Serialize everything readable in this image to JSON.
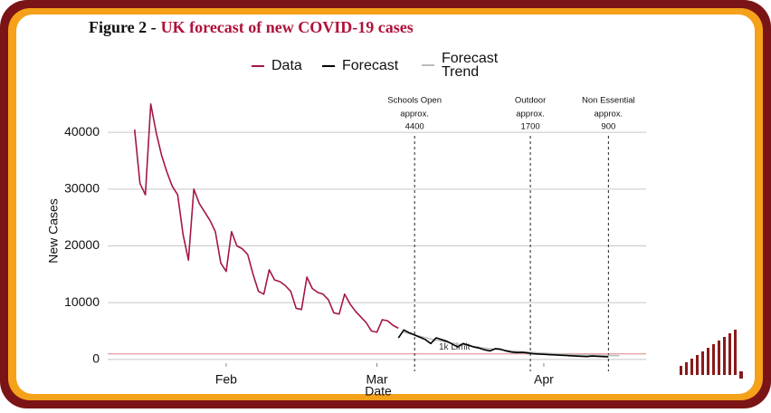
{
  "chart_data": {
    "type": "line",
    "figure_label": "Figure 2 -",
    "title": "UK forecast of new COVID-19 cases",
    "x_label": "Date",
    "y_label": "New Cases",
    "xlim": [
      10,
      110
    ],
    "xticks": [
      {
        "value": 32,
        "label": "Feb"
      },
      {
        "value": 60,
        "label": "Mar"
      },
      {
        "value": 91,
        "label": "Apr"
      }
    ],
    "ylim": [
      -500,
      48000
    ],
    "yticks": [
      0,
      10000,
      20000,
      30000,
      40000
    ],
    "grid": true,
    "series": [
      {
        "name": "Data",
        "color": "#a3164a",
        "x": [
          15,
          16,
          17,
          18,
          19,
          20,
          21,
          22,
          23,
          24,
          25,
          26,
          27,
          28,
          29,
          30,
          31,
          32,
          33,
          34,
          35,
          36,
          37,
          38,
          39,
          40,
          41,
          42,
          43,
          44,
          45,
          46,
          47,
          48,
          49,
          50,
          51,
          52,
          53,
          54,
          55,
          56,
          57,
          58,
          59,
          60,
          61,
          62,
          63,
          64
        ],
        "values": [
          40500,
          31000,
          29000,
          45000,
          40000,
          36000,
          33000,
          30500,
          29000,
          22000,
          17500,
          30000,
          27500,
          26000,
          24500,
          22500,
          17000,
          15500,
          22500,
          20000,
          19500,
          18500,
          15000,
          12000,
          11500,
          15800,
          14000,
          13700,
          13000,
          12000,
          9000,
          8800,
          14500,
          12500,
          11800,
          11500,
          10500,
          8200,
          8000,
          11500,
          9800,
          8500,
          7500,
          6500,
          5000,
          4800,
          7000,
          6800,
          6000,
          5500
        ]
      },
      {
        "name": "Forecast",
        "color": "#000000",
        "x": [
          64,
          65,
          66,
          67,
          68,
          69,
          70,
          71,
          72,
          73,
          74,
          75,
          76,
          77,
          78,
          79,
          80,
          81,
          82,
          83,
          84,
          85,
          86,
          87,
          88,
          89,
          90,
          91,
          92,
          93,
          94,
          95,
          96,
          97,
          98,
          99,
          100,
          101,
          102,
          103
        ],
        "values": [
          3800,
          5200,
          4700,
          4300,
          3900,
          3500,
          2800,
          3800,
          3500,
          3200,
          2700,
          2200,
          2800,
          2500,
          2200,
          2000,
          1700,
          1500,
          1900,
          1800,
          1500,
          1300,
          1200,
          1250,
          1150,
          1000,
          950,
          900,
          850,
          800,
          750,
          700,
          650,
          600,
          550,
          500,
          600,
          550,
          500,
          450
        ]
      },
      {
        "name": "Forecast Trend",
        "color": "#bbbbbb",
        "x": [
          65,
          70,
          75,
          80,
          85,
          90,
          95,
          100,
          105
        ],
        "values": [
          4800,
          3600,
          2700,
          2000,
          1500,
          1150,
          900,
          750,
          650
        ]
      }
    ],
    "limit": {
      "value": 1000,
      "label": "1k Limit",
      "color": "#e8a8a8"
    },
    "events": [
      {
        "x": 67,
        "label": "Schools Open",
        "note": "approx.",
        "value": 4400
      },
      {
        "x": 88.5,
        "label": "Outdoor",
        "note": "approx.",
        "value": 1700
      },
      {
        "x": 103,
        "label": "Non Essential",
        "note": "approx.",
        "value": 900
      }
    ]
  }
}
